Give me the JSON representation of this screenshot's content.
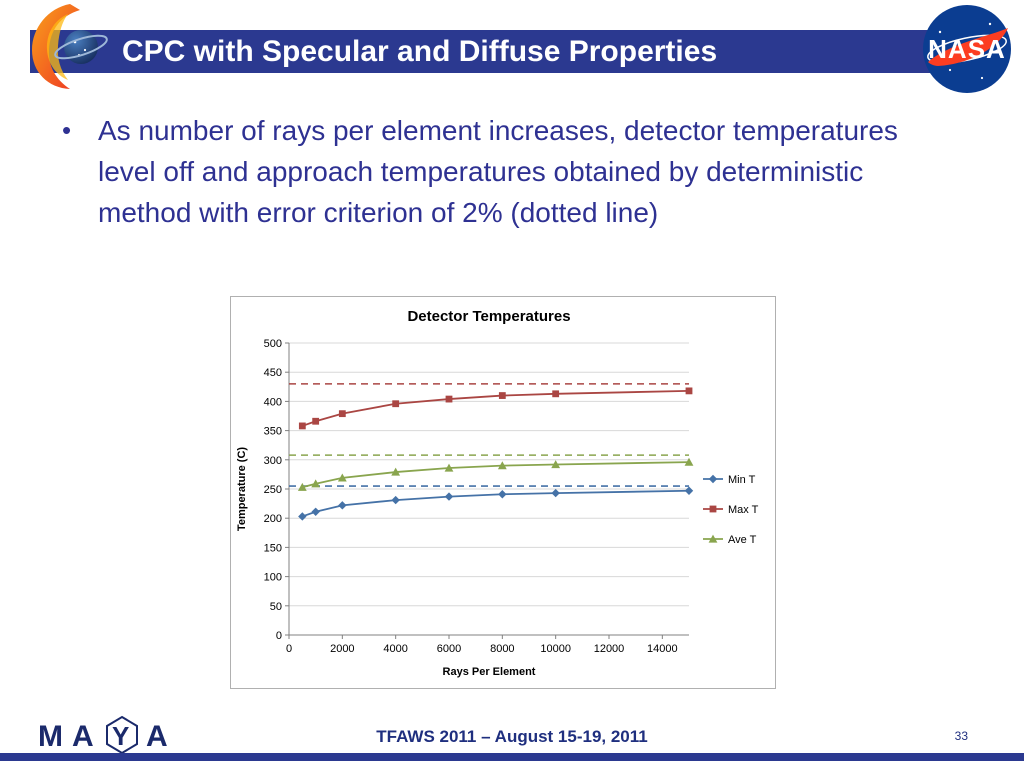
{
  "header": {
    "title": "CPC with Specular and Diffuse Properties",
    "nasa_text": "NASA"
  },
  "body": {
    "bullet_marker": "•",
    "bullet_text": "As number of rays per element increases, detector temperatures level off and approach temperatures obtained by deterministic method with error criterion of 2% (dotted line)"
  },
  "footer": {
    "text": "TFAWS 2011 – August 15-19, 2011",
    "page_number": "33",
    "maya_letters": [
      "M",
      "A",
      "Y",
      "A"
    ]
  },
  "colors": {
    "title_bar": "#2b3990",
    "title_text": "#ffffff",
    "body_text": "#2e3192",
    "footer_text": "#1f2f7f",
    "gridline": "#d8d8d8",
    "axis": "#808080",
    "nasa_blue": "#0b3d91",
    "nasa_red": "#fc3d21"
  },
  "chart_data": {
    "type": "line",
    "title": "Detector Temperatures",
    "xlabel": "Rays Per Element",
    "ylabel": "Temperature (C)",
    "xlim": [
      0,
      15000
    ],
    "ylim": [
      0,
      500
    ],
    "x_ticks": [
      0,
      2000,
      4000,
      6000,
      8000,
      10000,
      12000,
      14000
    ],
    "y_ticks": [
      0,
      50,
      100,
      150,
      200,
      250,
      300,
      350,
      400,
      450,
      500
    ],
    "grid": true,
    "legend_position": "right",
    "x": [
      500,
      1000,
      2000,
      4000,
      6000,
      8000,
      10000,
      15000
    ],
    "series": [
      {
        "name": "Min T",
        "color": "#4572A7",
        "marker": "diamond",
        "values": [
          203,
          211,
          222,
          231,
          237,
          241,
          243,
          247
        ],
        "asymptote": 255
      },
      {
        "name": "Max T",
        "color": "#AA4643",
        "marker": "square",
        "values": [
          358,
          366,
          379,
          396,
          404,
          410,
          413,
          418
        ],
        "asymptote": 430
      },
      {
        "name": "Ave T",
        "color": "#89A54E",
        "marker": "triangle",
        "values": [
          253,
          259,
          269,
          279,
          286,
          290,
          292,
          296
        ],
        "asymptote": 308
      }
    ]
  }
}
